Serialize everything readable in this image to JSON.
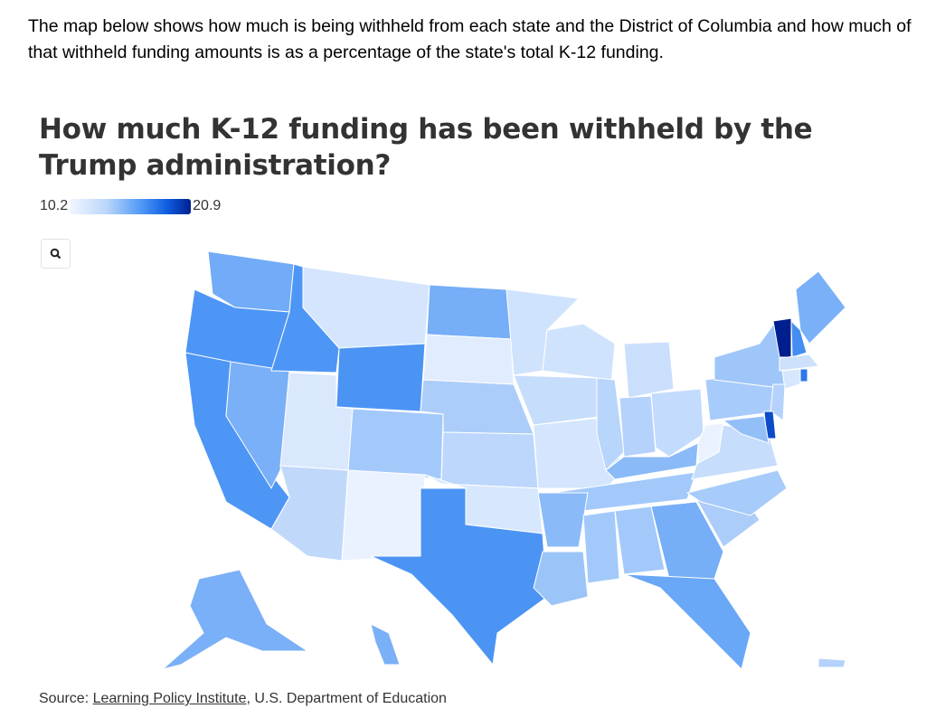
{
  "intro": "The map below shows how much is being withheld from each state and the District of Columbia and how much of that withheld funding amounts is as a percentage of the state's total K-12 funding.",
  "title": "How much K-12 funding has been withheld by the Trump administration?",
  "legend": {
    "min": "10.2",
    "max": "20.9",
    "min_value": 10.2,
    "max_value": 20.9,
    "colors": [
      "#f2f6ff",
      "#bcd7fb",
      "#4d96f5",
      "#0f5fe0",
      "#001f8f"
    ]
  },
  "zoom_icon": "search-icon",
  "source": {
    "prefix": "Source: ",
    "link": "Learning Policy Institute",
    "suffix": ", U.S. Department of Education"
  },
  "state_values": {
    "WA": 13.6,
    "OR": 14.5,
    "CA": 14.5,
    "NV": 13.4,
    "ID": 14.5,
    "MT": 11.1,
    "WY": 14.6,
    "UT": 10.9,
    "AZ": 11.7,
    "CO": 12.4,
    "NM": 10.4,
    "ND": 13.5,
    "SD": 10.7,
    "NE": 12.2,
    "KS": 11.8,
    "OK": 11.0,
    "TX": 14.6,
    "MN": 11.2,
    "IA": 11.5,
    "MO": 11.1,
    "WI": 11.2,
    "IL": 11.9,
    "MI": 11.4,
    "IN": 12.0,
    "OH": 11.6,
    "KY": 13.0,
    "TN": 12.4,
    "AR": 13.0,
    "LA": 12.6,
    "MS": 12.4,
    "AL": 12.4,
    "GA": 13.5,
    "FL": 13.8,
    "SC": 12.2,
    "NC": 12.3,
    "VA": 11.5,
    "WV": 10.4,
    "PA": 12.3,
    "NY": 12.5,
    "VT": 20.9,
    "NH": 15.0,
    "ME": 13.4,
    "MA": 11.3,
    "CT": 11.0,
    "RI": 16.5,
    "NJ": 12.0,
    "DE": 19.0,
    "MD": 12.8,
    "AK": 13.4,
    "HI": 13.4,
    "PR": 12.0
  }
}
